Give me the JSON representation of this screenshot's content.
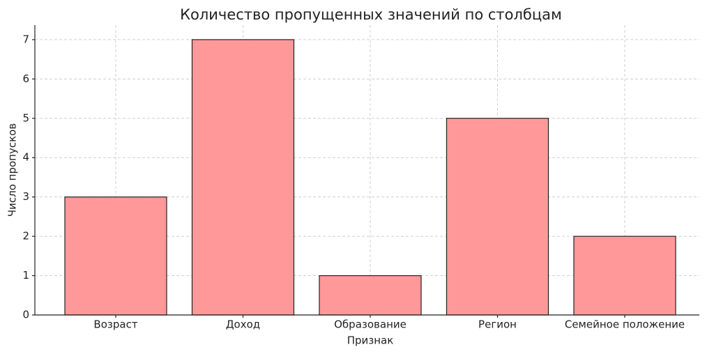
{
  "chart_data": {
    "type": "bar",
    "title": "Количество пропущенных значений по столбцам",
    "xlabel": "Признак",
    "ylabel": "Число пропусков",
    "categories": [
      "Возраст",
      "Доход",
      "Образование",
      "Регион",
      "Семейное положение"
    ],
    "values": [
      3,
      7,
      1,
      5,
      2
    ],
    "color": "#ff9999",
    "edgecolor": "#222222",
    "ylim": [
      0,
      7.37
    ],
    "yticks": [
      0,
      1,
      2,
      3,
      4,
      5,
      6,
      7
    ],
    "grid": true
  }
}
